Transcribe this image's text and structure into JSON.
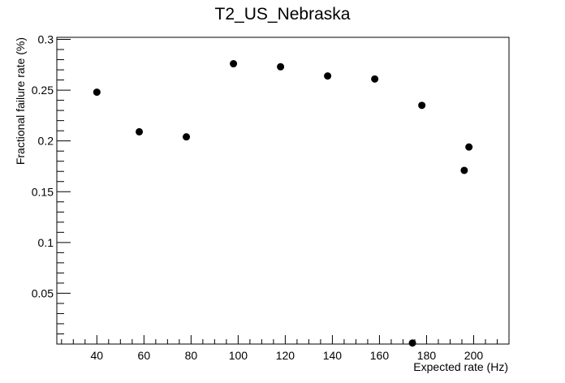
{
  "chart_data": {
    "type": "scatter",
    "title": "T2_US_Nebraska",
    "xlabel": "Expected rate (Hz)",
    "ylabel": "Fractional failure rate (%)",
    "xlim": [
      23,
      215
    ],
    "ylim": [
      0.0,
      0.302
    ],
    "x_ticks": [
      40,
      60,
      80,
      100,
      120,
      140,
      160,
      180,
      200
    ],
    "y_ticks": [
      0.05,
      0.1,
      0.15,
      0.2,
      0.25,
      0.3
    ],
    "x_tick_labels": [
      "40",
      "60",
      "80",
      "100",
      "120",
      "140",
      "160",
      "180",
      "200"
    ],
    "y_tick_labels": [
      "0.05",
      "0.1",
      "0.15",
      "0.2",
      "0.25",
      "0.3"
    ],
    "grid": false,
    "series": [
      {
        "x": [
          40,
          58,
          78,
          98,
          118,
          138,
          158,
          174,
          178,
          196,
          198
        ],
        "y": [
          0.248,
          0.209,
          0.204,
          0.276,
          0.273,
          0.264,
          0.261,
          0.001,
          0.235,
          0.171,
          0.194
        ]
      }
    ]
  }
}
